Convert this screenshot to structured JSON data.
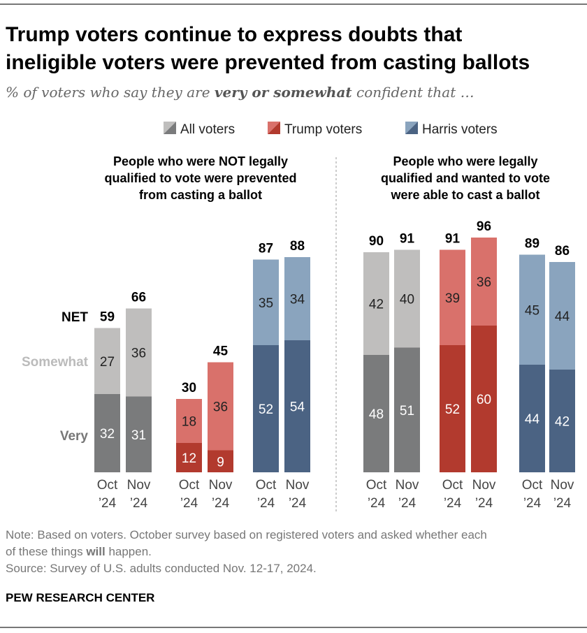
{
  "title_line1": "Trump voters continue to express doubts that",
  "title_line2": "ineligible voters were prevented from casting ballots",
  "subtitle_pre": "% of voters who say they are ",
  "subtitle_bold": "very or somewhat",
  "subtitle_post": " confident that …",
  "note_line1": "Note: Based on voters. October survey based on registered voters and asked whether each",
  "note_line2_pre": "of these things ",
  "note_line2_bold": "will",
  "note_line2_post": " happen.",
  "source": "Source: Survey of U.S. adults conducted Nov. 12-17, 2024.",
  "brand": "PEW RESEARCH CENTER",
  "chart_data": {
    "type": "stacked-bar",
    "legend": [
      "All voters",
      "Trump voters",
      "Harris voters"
    ],
    "legend_placement": "top",
    "row_labels": {
      "net": "NET",
      "somewhat": "Somewhat",
      "very": "Very"
    },
    "colors": {
      "All voters": {
        "very": "#7a7b7c",
        "somewhat": "#bfbebd"
      },
      "Trump voters": {
        "very": "#b23a2e",
        "somewhat": "#d9716b"
      },
      "Harris voters": {
        "very": "#4b6383",
        "somewhat": "#8aa4be"
      }
    },
    "panels": [
      {
        "title": [
          "People who were NOT legally",
          "qualified to vote were prevented",
          "from casting a ballot"
        ],
        "groups": [
          {
            "series": "All voters",
            "bars": [
              {
                "x": [
                  "Oct",
                  "’24"
                ],
                "very": 32,
                "somewhat": 27,
                "net": 59
              },
              {
                "x": [
                  "Nov",
                  "’24"
                ],
                "very": 31,
                "somewhat": 36,
                "net": 66
              }
            ]
          },
          {
            "series": "Trump voters",
            "bars": [
              {
                "x": [
                  "Oct",
                  "’24"
                ],
                "very": 12,
                "somewhat": 18,
                "net": 30
              },
              {
                "x": [
                  "Nov",
                  "’24"
                ],
                "very": 9,
                "somewhat": 36,
                "net": 45
              }
            ]
          },
          {
            "series": "Harris voters",
            "bars": [
              {
                "x": [
                  "Oct",
                  "’24"
                ],
                "very": 52,
                "somewhat": 35,
                "net": 87
              },
              {
                "x": [
                  "Nov",
                  "’24"
                ],
                "very": 54,
                "somewhat": 34,
                "net": 88
              }
            ]
          }
        ]
      },
      {
        "title": [
          "People who were legally",
          "qualified and wanted to vote",
          "were able to cast a ballot"
        ],
        "groups": [
          {
            "series": "All voters",
            "bars": [
              {
                "x": [
                  "Oct",
                  "’24"
                ],
                "very": 48,
                "somewhat": 42,
                "net": 90
              },
              {
                "x": [
                  "Nov",
                  "’24"
                ],
                "very": 51,
                "somewhat": 40,
                "net": 91
              }
            ]
          },
          {
            "series": "Trump voters",
            "bars": [
              {
                "x": [
                  "Oct",
                  "’24"
                ],
                "very": 52,
                "somewhat": 39,
                "net": 91
              },
              {
                "x": [
                  "Nov",
                  "’24"
                ],
                "very": 60,
                "somewhat": 36,
                "net": 96
              }
            ]
          },
          {
            "series": "Harris voters",
            "bars": [
              {
                "x": [
                  "Oct",
                  "’24"
                ],
                "very": 44,
                "somewhat": 45,
                "net": 89
              },
              {
                "x": [
                  "Nov",
                  "’24"
                ],
                "very": 42,
                "somewhat": 44,
                "net": 86
              }
            ]
          }
        ]
      }
    ]
  }
}
